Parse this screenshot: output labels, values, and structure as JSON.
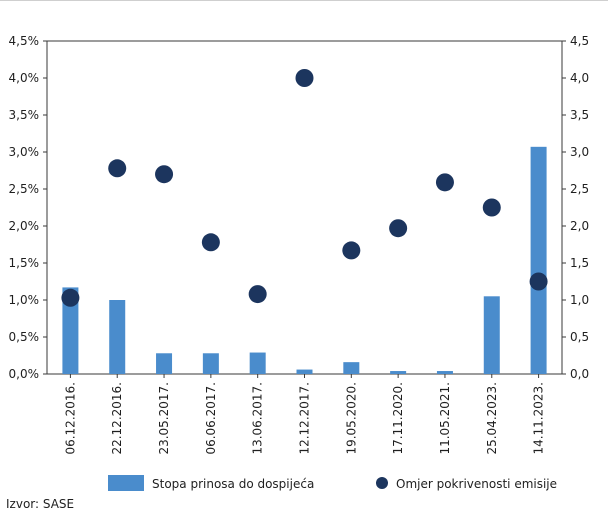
{
  "chart_data": {
    "type": "bar",
    "categories": [
      "06.12.2016.",
      "22.12.2016.",
      "23.05.2017.",
      "06.06.2017.",
      "13.06.2017.",
      "12.12.2017.",
      "19.05.2020.",
      "17.11.2020.",
      "11.05.2021.",
      "25.04.2023.",
      "14.11.2023."
    ],
    "series": [
      {
        "name": "Stopa prinosa do dospijeća",
        "type": "bar",
        "axis": "left",
        "color": "#4a8ccc",
        "values": [
          1.17,
          1.0,
          0.28,
          0.28,
          0.29,
          0.06,
          0.16,
          0.04,
          0.04,
          1.05,
          3.07
        ]
      },
      {
        "name": "Omjer pokrivenosti emisije",
        "type": "scatter",
        "axis": "right",
        "color": "#1c355e",
        "values": [
          1.03,
          2.78,
          2.7,
          1.78,
          1.08,
          4.0,
          1.67,
          1.97,
          2.59,
          2.25,
          1.25
        ]
      }
    ],
    "y_left": {
      "ylim": [
        0,
        4.5
      ],
      "ticks": [
        "0,0%",
        "0,5%",
        "1,0%",
        "1,5%",
        "2,0%",
        "2,5%",
        "3,0%",
        "3,5%",
        "4,0%",
        "4,5%"
      ]
    },
    "y_right": {
      "ylim": [
        0,
        4.5
      ],
      "ticks": [
        "0,0",
        "0,5",
        "1,0",
        "1,5",
        "2,0",
        "2,5",
        "3,0",
        "3,5",
        "4,0",
        "4,5"
      ]
    },
    "grid": false,
    "legend": "bottom"
  },
  "source": "Izvor: SASE"
}
